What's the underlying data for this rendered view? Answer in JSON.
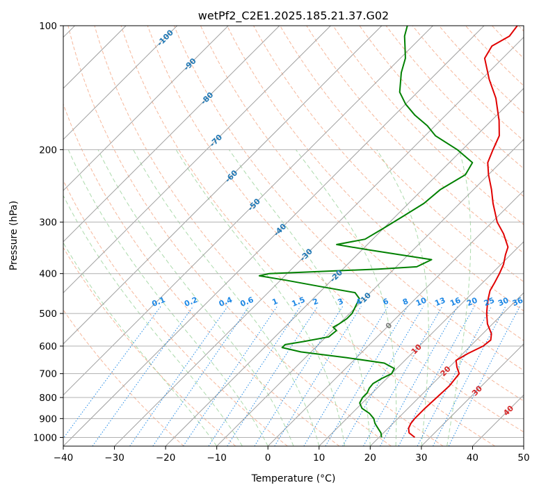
{
  "chart_data": {
    "type": "line",
    "subtype": "skew-T log-p diagram",
    "title": "wetPf2_C2E1.2025.185.21.37.G02",
    "xlabel": "Temperature (°C)",
    "ylabel": "Pressure (hPa)",
    "xlim": [
      -40,
      50
    ],
    "ylim": [
      1050,
      100
    ],
    "y_scale": "log",
    "x_ticks": [
      -40,
      -30,
      -20,
      -10,
      0,
      10,
      20,
      30,
      40,
      50
    ],
    "x_tick_labels": [
      "−40",
      "−30",
      "−20",
      "−10",
      "0",
      "10",
      "20",
      "30",
      "40",
      "50"
    ],
    "y_ticks": [
      100,
      200,
      300,
      400,
      500,
      600,
      700,
      800,
      900,
      1000
    ],
    "y_tick_labels": [
      "100",
      "200",
      "300",
      "400",
      "500",
      "600",
      "700",
      "800",
      "900",
      "1000"
    ],
    "grid": true,
    "series": [
      {
        "color": "#e00000",
        "points": [
          [
            1000,
            27.0
          ],
          [
            975,
            25.0
          ],
          [
            950,
            24.0
          ],
          [
            925,
            23.5
          ],
          [
            900,
            23.3
          ],
          [
            850,
            23.3
          ],
          [
            800,
            23.5
          ],
          [
            750,
            23.7
          ],
          [
            700,
            23.2
          ],
          [
            675,
            21.5
          ],
          [
            650,
            20.0
          ],
          [
            625,
            21.0
          ],
          [
            600,
            22.5
          ],
          [
            580,
            22.8
          ],
          [
            560,
            21.7
          ],
          [
            530,
            19.0
          ],
          [
            500,
            16.8
          ],
          [
            480,
            15.5
          ],
          [
            460,
            14.2
          ],
          [
            440,
            13.0
          ],
          [
            420,
            12.3
          ],
          [
            400,
            11.5
          ],
          [
            380,
            10.5
          ],
          [
            360,
            9.0
          ],
          [
            345,
            8.0
          ],
          [
            320,
            4.5
          ],
          [
            300,
            1.0
          ],
          [
            270,
            -3.5
          ],
          [
            250,
            -6.5
          ],
          [
            230,
            -10.0
          ],
          [
            215,
            -12.5
          ],
          [
            200,
            -14.0
          ],
          [
            185,
            -15.5
          ],
          [
            170,
            -18.5
          ],
          [
            150,
            -23.5
          ],
          [
            135,
            -28.5
          ],
          [
            120,
            -33.5
          ],
          [
            112,
            -34.5
          ],
          [
            106,
            -33.0
          ],
          [
            100,
            -33.5
          ]
        ]
      },
      {
        "color": "#008000",
        "points": [
          [
            1000,
            20.5
          ],
          [
            975,
            19.5
          ],
          [
            950,
            18.0
          ],
          [
            925,
            16.5
          ],
          [
            900,
            15.3
          ],
          [
            875,
            13.5
          ],
          [
            850,
            11.0
          ],
          [
            825,
            9.5
          ],
          [
            800,
            9.0
          ],
          [
            780,
            9.0
          ],
          [
            760,
            8.5
          ],
          [
            740,
            8.3
          ],
          [
            720,
            9.0
          ],
          [
            700,
            10.0
          ],
          [
            680,
            9.5
          ],
          [
            660,
            6.5
          ],
          [
            640,
            -2.0
          ],
          [
            620,
            -12.0
          ],
          [
            605,
            -16.5
          ],
          [
            595,
            -16.5
          ],
          [
            585,
            -13.5
          ],
          [
            570,
            -9.5
          ],
          [
            550,
            -9.2
          ],
          [
            540,
            -10.5
          ],
          [
            530,
            -10.0
          ],
          [
            515,
            -9.5
          ],
          [
            500,
            -9.5
          ],
          [
            460,
            -11.0
          ],
          [
            445,
            -13.0
          ],
          [
            430,
            -21.0
          ],
          [
            415,
            -29.0
          ],
          [
            405,
            -35.0
          ],
          [
            400,
            -33.5
          ],
          [
            390,
            -13.0
          ],
          [
            385,
            -6.0
          ],
          [
            370,
            -4.5
          ],
          [
            350,
            -19.0
          ],
          [
            340,
            -26.0
          ],
          [
            330,
            -21.5
          ],
          [
            310,
            -20.0
          ],
          [
            290,
            -18.5
          ],
          [
            270,
            -17.0
          ],
          [
            250,
            -16.5
          ],
          [
            230,
            -14.5
          ],
          [
            215,
            -15.5
          ],
          [
            200,
            -21.0
          ],
          [
            185,
            -28.0
          ],
          [
            175,
            -31.5
          ],
          [
            165,
            -36.0
          ],
          [
            155,
            -40.0
          ],
          [
            145,
            -43.5
          ],
          [
            130,
            -47.0
          ],
          [
            120,
            -49.0
          ],
          [
            112,
            -51.5
          ],
          [
            106,
            -53.5
          ],
          [
            100,
            -55.0
          ]
        ]
      }
    ],
    "reference_lines": {
      "isotherms_deg_c": [
        -100,
        -90,
        -80,
        -70,
        -60,
        -50,
        -40,
        -30,
        -20,
        -10,
        0,
        10,
        20,
        30,
        40,
        50
      ],
      "isotherm_labels": [
        "-100",
        "-90",
        "-80",
        "-70",
        "-60",
        "-50",
        "-40",
        "-30",
        "-20",
        "-10",
        "0",
        "10",
        "20",
        "30",
        "40"
      ],
      "mixing_ratios_g_per_kg": [
        "0.1",
        "0.2",
        "0.4",
        "0.6",
        "1",
        "1.5",
        "2",
        "3",
        "4",
        "6",
        "8",
        "10",
        "13",
        "16",
        "20",
        "25",
        "30",
        "36"
      ],
      "dry_adiabats_theta_c": [
        -20,
        -10,
        0,
        10,
        20,
        30,
        40,
        50,
        60,
        70,
        80,
        90,
        100,
        110,
        120,
        130,
        140,
        150,
        160,
        170,
        180,
        190,
        200
      ],
      "moist_adiabats_start_c": [
        -10,
        -5,
        0,
        5,
        10,
        15,
        20,
        25,
        30,
        35
      ]
    },
    "colors": {
      "temperature": "#e00000",
      "dewpoint": "#008000",
      "isotherm": "#a0a0a0",
      "dry_adiabat": "#f4a582",
      "moist_adiabat": "#8fce8f",
      "mixing_ratio": "#1e88e5",
      "isotherm_label_cold": "#1f77b4",
      "isotherm_label_warm": "#d62728",
      "isotherm_label_zero": "#808080"
    }
  }
}
